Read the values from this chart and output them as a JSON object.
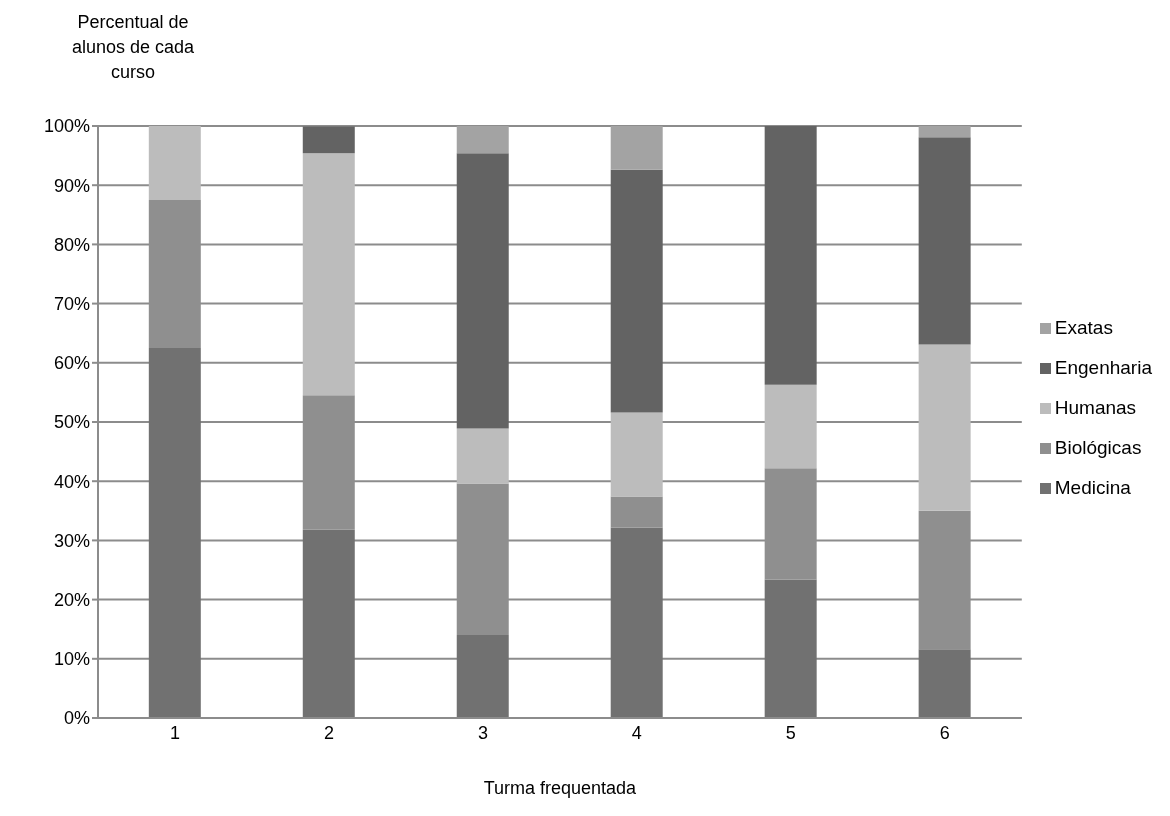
{
  "chart_data": {
    "type": "bar",
    "stacked": true,
    "ylabel": "Percentual de alunos de cada curso",
    "xlabel": "Turma frequentada",
    "categories": [
      "1",
      "2",
      "3",
      "4",
      "5",
      "6"
    ],
    "series": [
      {
        "name": "Medicina",
        "color": "#717171",
        "values": [
          62.5,
          31.8,
          14.0,
          32.2,
          23.4,
          11.6
        ]
      },
      {
        "name": "Biológicas",
        "color": "#8f8f8f",
        "values": [
          25.0,
          22.7,
          25.6,
          5.2,
          18.8,
          23.4
        ]
      },
      {
        "name": "Humanas",
        "color": "#bcbcbc",
        "values": [
          12.5,
          40.9,
          9.3,
          14.2,
          14.1,
          28.1
        ]
      },
      {
        "name": "Engenharia",
        "color": "#636363",
        "values": [
          0,
          4.5,
          46.5,
          41.0,
          43.7,
          35.0
        ]
      },
      {
        "name": "Exatas",
        "color": "#a3a3a3",
        "values": [
          0,
          0,
          4.7,
          7.4,
          0,
          1.9
        ]
      }
    ],
    "ylim": [
      0,
      100
    ],
    "yticks": [
      {
        "value": 0,
        "label": "0%"
      },
      {
        "value": 10,
        "label": "10%"
      },
      {
        "value": 20,
        "label": "20%"
      },
      {
        "value": 30,
        "label": "30%"
      },
      {
        "value": 40,
        "label": "40%"
      },
      {
        "value": 50,
        "label": "50%"
      },
      {
        "value": 60,
        "label": "60%"
      },
      {
        "value": 70,
        "label": "70%"
      },
      {
        "value": 80,
        "label": "80%"
      },
      {
        "value": 90,
        "label": "90%"
      },
      {
        "value": 100,
        "label": "100%"
      }
    ],
    "grid": "y",
    "legend": "right"
  }
}
